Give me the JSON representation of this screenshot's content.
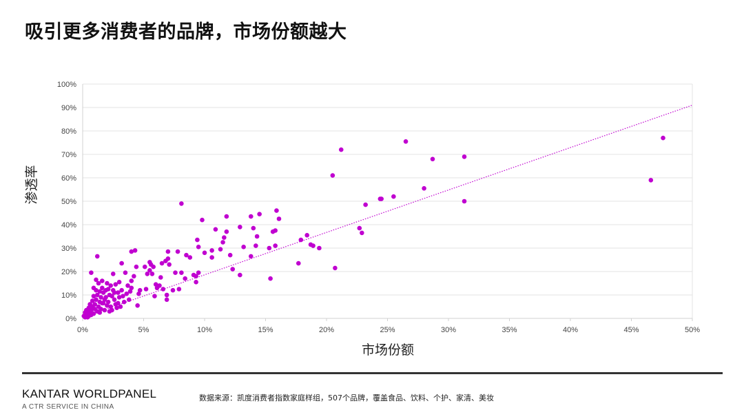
{
  "page": {
    "title": "吸引更多消费者的品牌，市场份额越大",
    "brand": "KANTAR WORLDPANEL",
    "brand_sub": "A CTR SERVICE IN CHINA",
    "source": "数据来源：凯度消费者指数家庭样组，507个品牌，覆盖食品、饮料、个护、家清、美妆"
  },
  "chart_data": {
    "type": "scatter",
    "xlabel": "市场份额",
    "ylabel": "渗透率",
    "xlim": [
      0,
      50
    ],
    "ylim": [
      0,
      100
    ],
    "x_ticks": [
      0,
      5,
      10,
      15,
      20,
      25,
      30,
      35,
      40,
      45,
      50
    ],
    "x_tick_labels": [
      "0%",
      "5%",
      "10%",
      "15%",
      "20%",
      "25%",
      "30%",
      "35%",
      "40%",
      "45%",
      "50%"
    ],
    "y_ticks": [
      0,
      10,
      20,
      30,
      40,
      50,
      60,
      70,
      80,
      90,
      100
    ],
    "y_tick_labels": [
      "0%",
      "10%",
      "20%",
      "30%",
      "40%",
      "50%",
      "60%",
      "70%",
      "80%",
      "90%",
      "100%"
    ],
    "grid": "horizontal",
    "point_color": "#c000d0",
    "trendline": {
      "type": "linear",
      "start": [
        0,
        0.5
      ],
      "end": [
        50,
        91
      ],
      "color": "#c000d0",
      "style": "dotted"
    },
    "points": [
      [
        47.6,
        77
      ],
      [
        46.6,
        59
      ],
      [
        31.3,
        69
      ],
      [
        31.3,
        50
      ],
      [
        28.7,
        68
      ],
      [
        28.0,
        55.5
      ],
      [
        26.5,
        75.5
      ],
      [
        25.5,
        52
      ],
      [
        24.5,
        51
      ],
      [
        24.4,
        51
      ],
      [
        23.2,
        48.5
      ],
      [
        22.9,
        36.5
      ],
      [
        22.7,
        38.5
      ],
      [
        21.2,
        72
      ],
      [
        20.5,
        61
      ],
      [
        20.7,
        21.5
      ],
      [
        19.4,
        30
      ],
      [
        18.9,
        31
      ],
      [
        18.7,
        31.5
      ],
      [
        18.4,
        35.5
      ],
      [
        17.9,
        33.5
      ],
      [
        17.7,
        23.5
      ],
      [
        16.1,
        42.5
      ],
      [
        15.9,
        46
      ],
      [
        15.8,
        37.5
      ],
      [
        15.8,
        31
      ],
      [
        15.6,
        37
      ],
      [
        15.4,
        17
      ],
      [
        15.3,
        30
      ],
      [
        14.5,
        44.5
      ],
      [
        14.3,
        35
      ],
      [
        14.2,
        31
      ],
      [
        14.0,
        38.5
      ],
      [
        13.8,
        43.5
      ],
      [
        13.8,
        26.5
      ],
      [
        13.2,
        30.5
      ],
      [
        12.9,
        39
      ],
      [
        12.9,
        18.5
      ],
      [
        12.3,
        21
      ],
      [
        12.1,
        27
      ],
      [
        11.8,
        43.5
      ],
      [
        11.8,
        37
      ],
      [
        11.6,
        34.5
      ],
      [
        11.5,
        32.5
      ],
      [
        11.3,
        29.5
      ],
      [
        10.9,
        38
      ],
      [
        10.6,
        29
      ],
      [
        10.6,
        26
      ],
      [
        10.0,
        28
      ],
      [
        9.8,
        42
      ],
      [
        9.5,
        30.5
      ],
      [
        9.4,
        33.5
      ],
      [
        9.5,
        19.5
      ],
      [
        9.3,
        18
      ],
      [
        9.3,
        15.5
      ],
      [
        9.1,
        18.5
      ],
      [
        8.8,
        26
      ],
      [
        8.5,
        27
      ],
      [
        8.4,
        17
      ],
      [
        8.1,
        49
      ],
      [
        8.1,
        19.5
      ],
      [
        7.9,
        12.5
      ],
      [
        7.8,
        28.5
      ],
      [
        7.6,
        19.5
      ],
      [
        7.4,
        12
      ],
      [
        7.1,
        23
      ],
      [
        7.0,
        28.5
      ],
      [
        7.0,
        25.5
      ],
      [
        6.9,
        10
      ],
      [
        6.9,
        8
      ],
      [
        6.8,
        24.5
      ],
      [
        6.6,
        12.5
      ],
      [
        6.5,
        23.5
      ],
      [
        6.4,
        17.5
      ],
      [
        6.3,
        14
      ],
      [
        6.1,
        13
      ],
      [
        6.0,
        14.5
      ],
      [
        5.9,
        9.5
      ],
      [
        5.8,
        22
      ],
      [
        5.7,
        19
      ],
      [
        5.6,
        23
      ],
      [
        5.5,
        24
      ],
      [
        5.5,
        20.5
      ],
      [
        5.3,
        19
      ],
      [
        5.2,
        12.5
      ],
      [
        5.1,
        22
      ],
      [
        4.7,
        12
      ],
      [
        4.6,
        10.5
      ],
      [
        4.5,
        5.5
      ],
      [
        4.4,
        22
      ],
      [
        4.3,
        29
      ],
      [
        4.2,
        18
      ],
      [
        4.0,
        28.5
      ],
      [
        4.0,
        16
      ],
      [
        4.0,
        13
      ],
      [
        3.9,
        11.5
      ],
      [
        3.8,
        8
      ],
      [
        3.7,
        14
      ],
      [
        3.6,
        10.5
      ],
      [
        3.5,
        19.5
      ],
      [
        3.4,
        7
      ],
      [
        3.3,
        9.5
      ],
      [
        3.2,
        23.5
      ],
      [
        3.2,
        12
      ],
      [
        3.1,
        5
      ],
      [
        3.0,
        15.5
      ],
      [
        3.0,
        9
      ],
      [
        2.9,
        11
      ],
      [
        2.9,
        6.5
      ],
      [
        2.7,
        14.5
      ],
      [
        2.7,
        6
      ],
      [
        2.6,
        8
      ],
      [
        2.5,
        19
      ],
      [
        2.5,
        12
      ],
      [
        2.4,
        9.5
      ],
      [
        2.3,
        14
      ],
      [
        2.3,
        5
      ],
      [
        2.2,
        10
      ],
      [
        2.2,
        3
      ],
      [
        2.1,
        7
      ],
      [
        2.0,
        15
      ],
      [
        2.0,
        5.5
      ],
      [
        1.9,
        12
      ],
      [
        1.9,
        9
      ],
      [
        1.8,
        3.5
      ],
      [
        1.7,
        11
      ],
      [
        1.7,
        6.5
      ],
      [
        1.6,
        16
      ],
      [
        1.6,
        13
      ],
      [
        1.5,
        9
      ],
      [
        1.5,
        4
      ],
      [
        1.4,
        11.5
      ],
      [
        1.4,
        7
      ],
      [
        1.3,
        15
      ],
      [
        1.3,
        5
      ],
      [
        1.2,
        26.5
      ],
      [
        1.2,
        10
      ],
      [
        1.2,
        3
      ],
      [
        1.1,
        16.5
      ],
      [
        1.1,
        8
      ],
      [
        1.0,
        6
      ],
      [
        1.0,
        4
      ],
      [
        0.9,
        13
      ],
      [
        0.9,
        9.5
      ],
      [
        0.9,
        2
      ],
      [
        0.8,
        7.5
      ],
      [
        0.8,
        5
      ],
      [
        0.7,
        19.5
      ],
      [
        0.7,
        3.5
      ],
      [
        0.7,
        1.5
      ],
      [
        0.6,
        6
      ],
      [
        0.6,
        2.5
      ],
      [
        0.5,
        4.5
      ],
      [
        0.5,
        3
      ],
      [
        0.5,
        1
      ],
      [
        0.4,
        2
      ],
      [
        0.4,
        0.5
      ],
      [
        0.3,
        3.5
      ],
      [
        0.3,
        1.5
      ],
      [
        0.2,
        2.5
      ],
      [
        0.2,
        0.5
      ],
      [
        0.1,
        1
      ],
      [
        2.8,
        4.5
      ],
      [
        2.6,
        11
      ],
      [
        2.4,
        3.5
      ],
      [
        2.1,
        12.5
      ],
      [
        1.8,
        8
      ],
      [
        1.6,
        6.5
      ],
      [
        1.4,
        2.5
      ],
      [
        1.1,
        12
      ]
    ]
  }
}
